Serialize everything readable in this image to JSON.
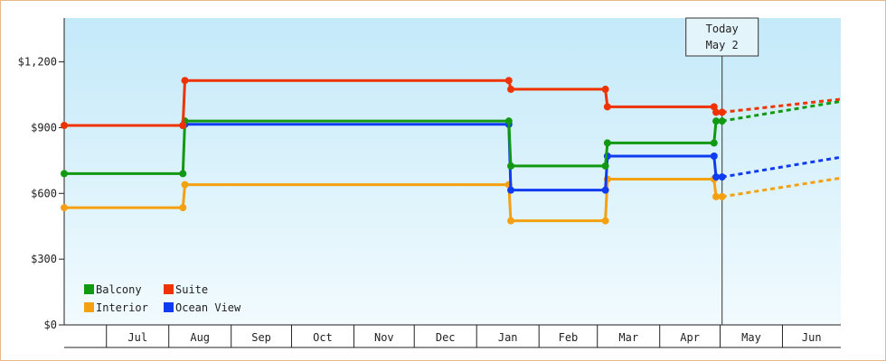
{
  "chart_data": {
    "type": "line",
    "step": true,
    "title": "",
    "xlabel": "",
    "ylabel": "",
    "y_ticks": [
      "$0",
      "$300",
      "$600",
      "$900",
      "$1,200"
    ],
    "y_tick_values": [
      0,
      300,
      600,
      900,
      1200
    ],
    "ylim": [
      0,
      1400
    ],
    "x_start": "2023-06-10",
    "x_end": "2024-06-30",
    "month_labels": [
      {
        "label": "Jul",
        "date": "2023-07-01"
      },
      {
        "label": "Aug",
        "date": "2023-08-01"
      },
      {
        "label": "Sep",
        "date": "2023-09-01"
      },
      {
        "label": "Oct",
        "date": "2023-10-01"
      },
      {
        "label": "Nov",
        "date": "2023-11-01"
      },
      {
        "label": "Dec",
        "date": "2023-12-01"
      },
      {
        "label": "Jan",
        "date": "2024-01-01"
      },
      {
        "label": "Feb",
        "date": "2024-02-01"
      },
      {
        "label": "Mar",
        "date": "2024-03-01"
      },
      {
        "label": "Apr",
        "date": "2024-04-01"
      },
      {
        "label": "May",
        "date": "2024-05-01"
      },
      {
        "label": "Jun",
        "date": "2024-06-01"
      }
    ],
    "today": {
      "label_line1": "Today",
      "label_line2": "May 2",
      "date": "2024-05-02"
    },
    "legend": {
      "placement": "bottom-left"
    },
    "series": [
      {
        "name": "Balcony",
        "color": "#119911",
        "points": [
          {
            "date": "2023-06-10",
            "value": 690
          },
          {
            "date": "2023-08-08",
            "value": 690
          },
          {
            "date": "2023-08-09",
            "value": 930
          },
          {
            "date": "2024-01-17",
            "value": 930
          },
          {
            "date": "2024-01-18",
            "value": 725
          },
          {
            "date": "2024-03-05",
            "value": 725
          },
          {
            "date": "2024-03-06",
            "value": 830
          },
          {
            "date": "2024-04-28",
            "value": 830
          },
          {
            "date": "2024-04-29",
            "value": 930
          },
          {
            "date": "2024-05-02",
            "value": 930
          }
        ],
        "forecast": [
          {
            "date": "2024-05-02",
            "value": 930
          },
          {
            "date": "2024-06-30",
            "value": 1020
          }
        ]
      },
      {
        "name": "Suite",
        "color": "#ee3300",
        "points": [
          {
            "date": "2023-06-10",
            "value": 910
          },
          {
            "date": "2023-08-08",
            "value": 910
          },
          {
            "date": "2023-08-09",
            "value": 1115
          },
          {
            "date": "2024-01-17",
            "value": 1115
          },
          {
            "date": "2024-01-18",
            "value": 1075
          },
          {
            "date": "2024-03-05",
            "value": 1075
          },
          {
            "date": "2024-03-06",
            "value": 995
          },
          {
            "date": "2024-04-28",
            "value": 995
          },
          {
            "date": "2024-04-29",
            "value": 970
          },
          {
            "date": "2024-05-02",
            "value": 970
          }
        ],
        "forecast": [
          {
            "date": "2024-05-02",
            "value": 970
          },
          {
            "date": "2024-06-30",
            "value": 1030
          }
        ]
      },
      {
        "name": "Interior",
        "color": "#f5a010",
        "points": [
          {
            "date": "2023-06-10",
            "value": 535
          },
          {
            "date": "2023-08-08",
            "value": 535
          },
          {
            "date": "2023-08-09",
            "value": 640
          },
          {
            "date": "2024-01-17",
            "value": 640
          },
          {
            "date": "2024-01-18",
            "value": 475
          },
          {
            "date": "2024-03-05",
            "value": 475
          },
          {
            "date": "2024-03-06",
            "value": 665
          },
          {
            "date": "2024-04-28",
            "value": 665
          },
          {
            "date": "2024-04-29",
            "value": 585
          },
          {
            "date": "2024-05-02",
            "value": 585
          }
        ],
        "forecast": [
          {
            "date": "2024-05-02",
            "value": 585
          },
          {
            "date": "2024-06-30",
            "value": 670
          }
        ]
      },
      {
        "name": "Ocean View",
        "color": "#0f3cf0",
        "points": [
          {
            "date": "2023-08-08",
            "value": 910
          },
          {
            "date": "2023-08-09",
            "value": 915
          },
          {
            "date": "2024-01-17",
            "value": 915
          },
          {
            "date": "2024-01-18",
            "value": 615
          },
          {
            "date": "2024-03-05",
            "value": 615
          },
          {
            "date": "2024-03-06",
            "value": 770
          },
          {
            "date": "2024-04-28",
            "value": 770
          },
          {
            "date": "2024-04-29",
            "value": 675
          },
          {
            "date": "2024-05-02",
            "value": 675
          }
        ],
        "forecast": [
          {
            "date": "2024-05-02",
            "value": 675
          },
          {
            "date": "2024-06-30",
            "value": 765
          }
        ]
      }
    ]
  }
}
